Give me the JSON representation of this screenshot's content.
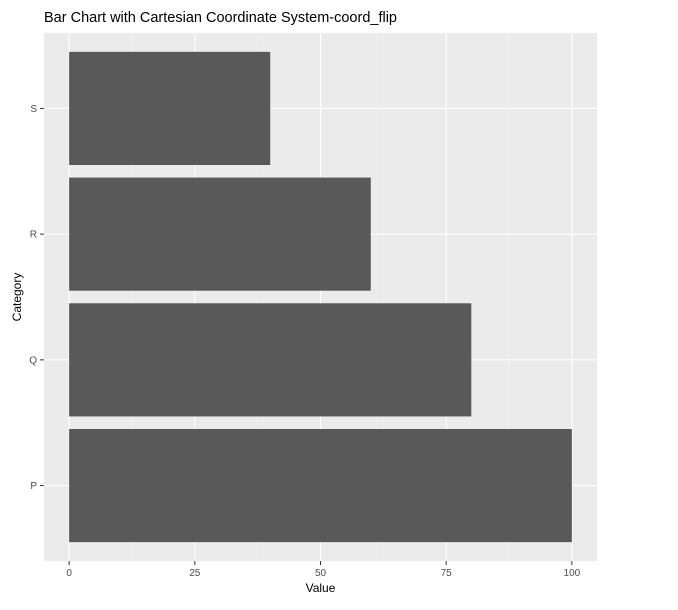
{
  "colors": {
    "panel_background": "#ebebeb",
    "grid_major": "#ffffff",
    "grid_minor": "#f5f5f5",
    "bar_fill": "#595959",
    "axis_text": "#4d4d4d",
    "title_text": "#000000"
  },
  "chart_data": {
    "type": "bar",
    "orientation": "horizontal",
    "title": "Bar Chart with Cartesian Coordinate System-coord_flip",
    "xlabel": "Value",
    "ylabel": "Category",
    "categories": [
      "P",
      "Q",
      "R",
      "S"
    ],
    "values": [
      100,
      80,
      60,
      40
    ],
    "xlim": [
      -5,
      105
    ],
    "x_ticks": [
      0,
      25,
      50,
      75,
      100
    ],
    "x_tick_labels": [
      "0",
      "25",
      "50",
      "75",
      "100"
    ],
    "grid": true,
    "legend": "none"
  }
}
